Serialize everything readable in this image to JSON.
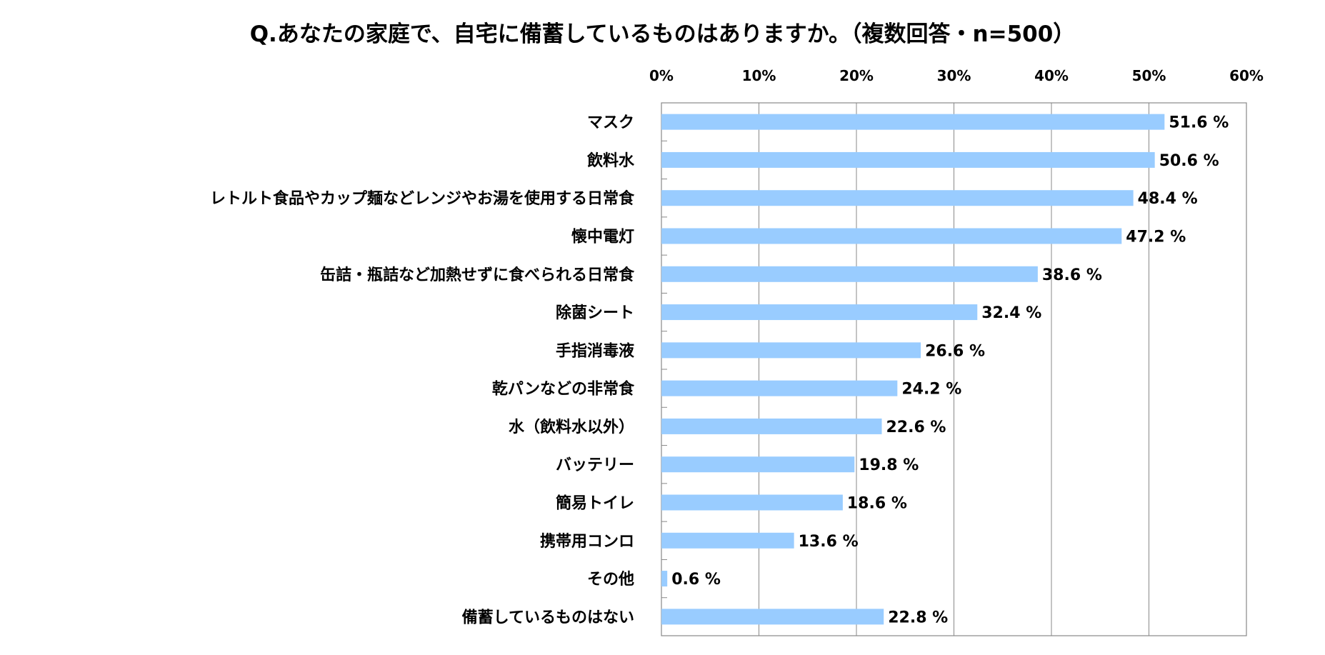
{
  "chart_data": {
    "type": "bar",
    "orientation": "horizontal",
    "title": "Q.あなたの家庭で、自宅に備蓄しているものはありますか。（複数回答・n=500）",
    "xlabel": "",
    "ylabel": "",
    "xlim": [
      0,
      60
    ],
    "tick_labels": [
      "0%",
      "10%",
      "20%",
      "30%",
      "40%",
      "50%",
      "60%"
    ],
    "tick_values": [
      0,
      10,
      20,
      30,
      40,
      50,
      60
    ],
    "grid": true,
    "bar_color": "#99CCFF",
    "categories": [
      "マスク",
      "飲料水",
      "レトルト食品やカップ麺などレンジやお湯を使用する日常食",
      "懐中電灯",
      "缶詰・瓶詰など加熱せずに食べられる日常食",
      "除菌シート",
      "手指消毒液",
      "乾パンなどの非常食",
      "水（飲料水以外）",
      "バッテリー",
      "簡易トイレ",
      "携帯用コンロ",
      "その他",
      "備蓄しているものはない"
    ],
    "values": [
      51.6,
      50.6,
      48.4,
      47.2,
      38.6,
      32.4,
      26.6,
      24.2,
      22.6,
      19.8,
      18.6,
      13.6,
      0.6,
      22.8
    ],
    "value_labels": [
      "51.6 %",
      "50.6 %",
      "48.4 %",
      "47.2 %",
      "38.6 %",
      "32.4 %",
      "26.6 %",
      "24.2 %",
      "22.6 %",
      "19.8 %",
      "18.6 %",
      "13.6 %",
      "0.6 %",
      "22.8 %"
    ]
  }
}
